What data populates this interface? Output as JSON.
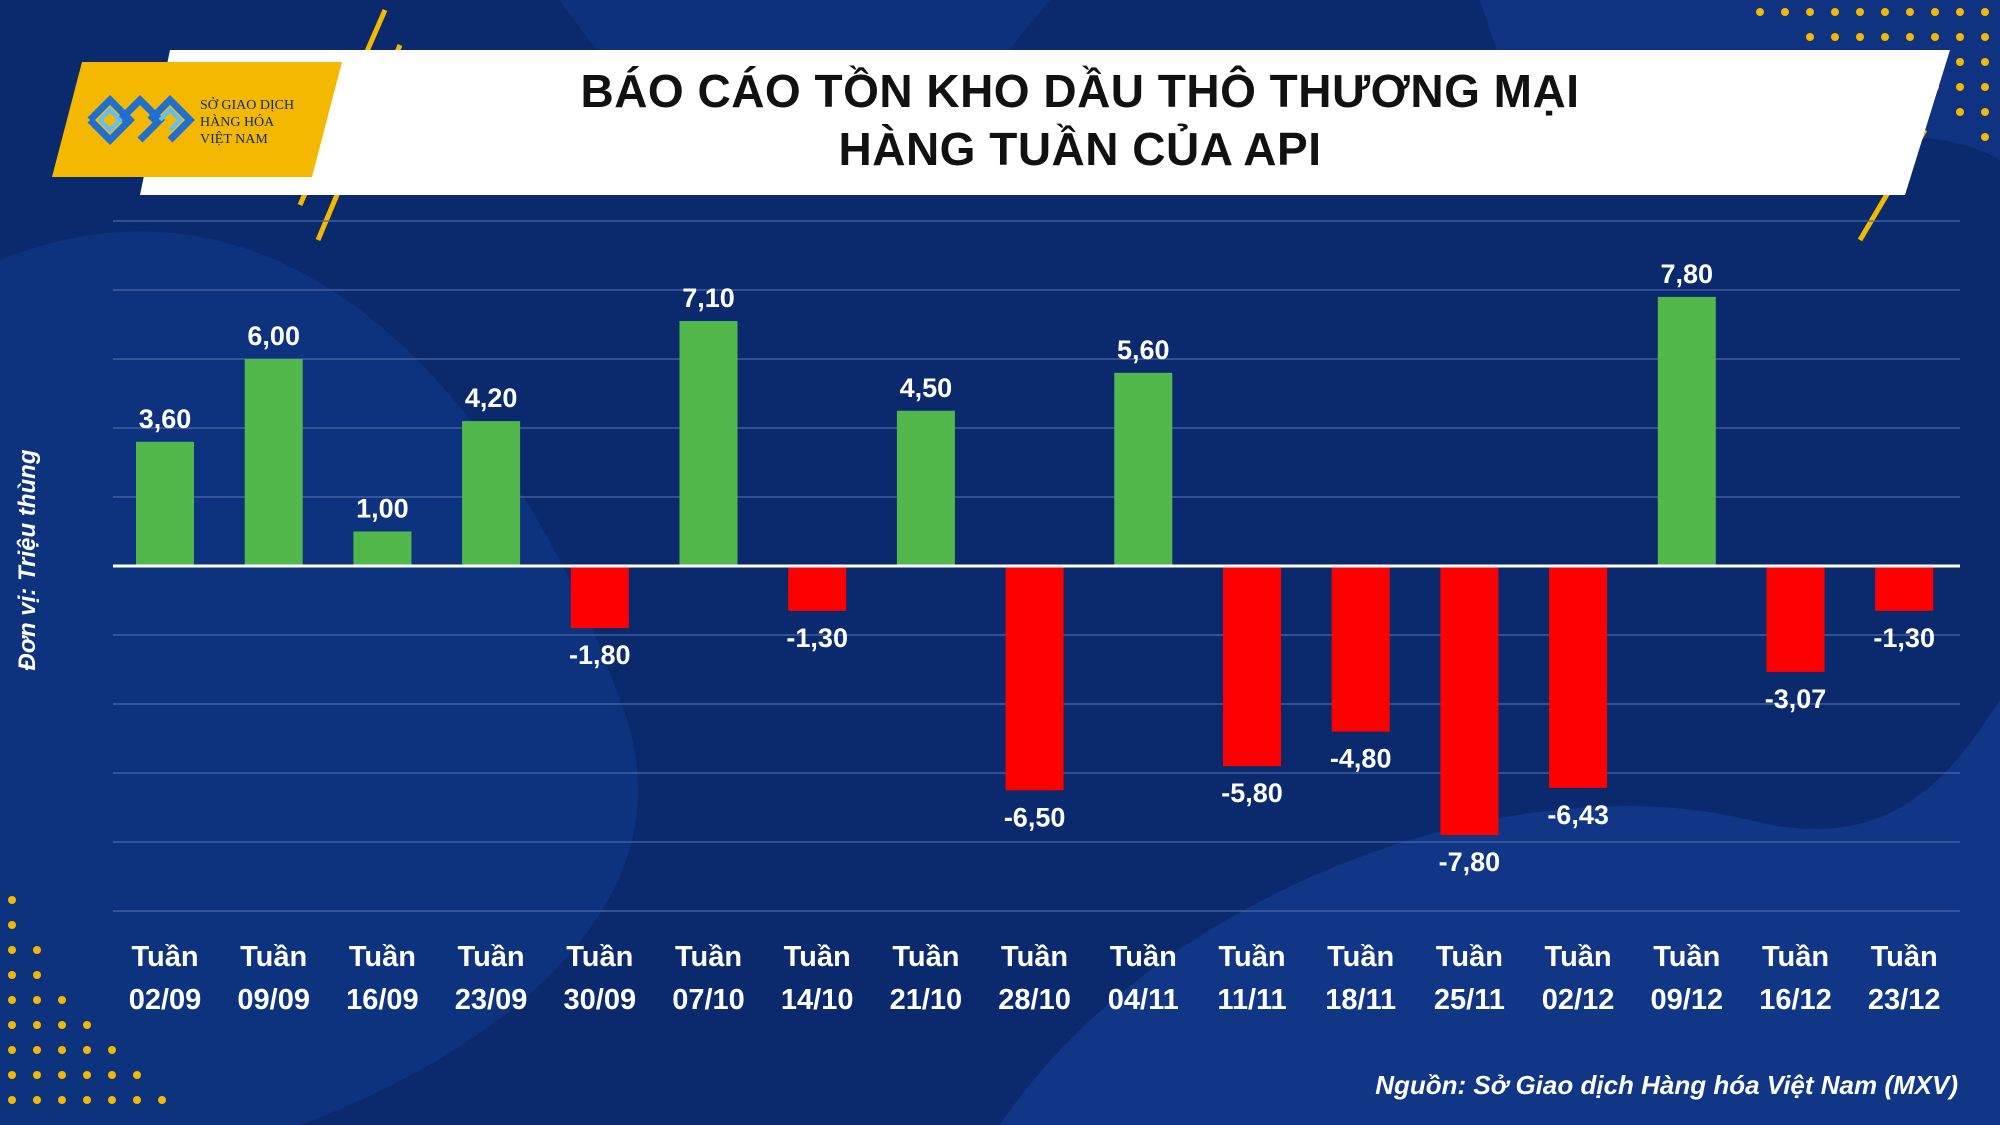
{
  "header": {
    "title_line1": "BÁO CÁO TỒN KHO DẦU THÔ THƯƠNG MẠI",
    "title_line2": "HÀNG TUẦN CỦA API"
  },
  "logo": {
    "line1": "SỞ GIAO DỊCH",
    "line2": "HÀNG HÓA",
    "line3": "VIỆT NAM"
  },
  "source": "Nguồn: Sở Giao dịch Hàng hóa Việt Nam (MXV)",
  "colors": {
    "positive": "#52b84c",
    "negative": "#ff0000",
    "background": "#0b2a6e",
    "accent": "#f5b800"
  },
  "chart_data": {
    "type": "bar",
    "ylabel": "Đơn vị: Triệu thùng",
    "xlabel": "",
    "ylim": [
      -10,
      10
    ],
    "grid": true,
    "categories": [
      [
        "Tuần",
        "02/09"
      ],
      [
        "Tuần",
        "09/09"
      ],
      [
        "Tuần",
        "16/09"
      ],
      [
        "Tuần",
        "23/09"
      ],
      [
        "Tuần",
        "30/09"
      ],
      [
        "Tuần",
        "07/10"
      ],
      [
        "Tuần",
        "14/10"
      ],
      [
        "Tuần",
        "21/10"
      ],
      [
        "Tuần",
        "28/10"
      ],
      [
        "Tuần",
        "04/11"
      ],
      [
        "Tuần",
        "11/11"
      ],
      [
        "Tuần",
        "18/11"
      ],
      [
        "Tuần",
        "25/11"
      ],
      [
        "Tuần",
        "02/12"
      ],
      [
        "Tuần",
        "09/12"
      ],
      [
        "Tuần",
        "16/12"
      ],
      [
        "Tuần",
        "23/12"
      ]
    ],
    "values": [
      3.6,
      6.0,
      1.0,
      4.2,
      -1.8,
      7.1,
      -1.3,
      4.5,
      -6.5,
      5.6,
      -5.8,
      -4.8,
      -7.8,
      -6.43,
      7.8,
      -3.07,
      -1.3
    ],
    "labels": [
      "3,60",
      "6,00",
      "1,00",
      "4,20",
      "-1,80",
      "7,10",
      "-1,30",
      "4,50",
      "-6,50",
      "5,60",
      "-5,80",
      "-4,80",
      "-7,80",
      "-6,43",
      "7,80",
      "-3,07",
      "-1,30"
    ]
  }
}
